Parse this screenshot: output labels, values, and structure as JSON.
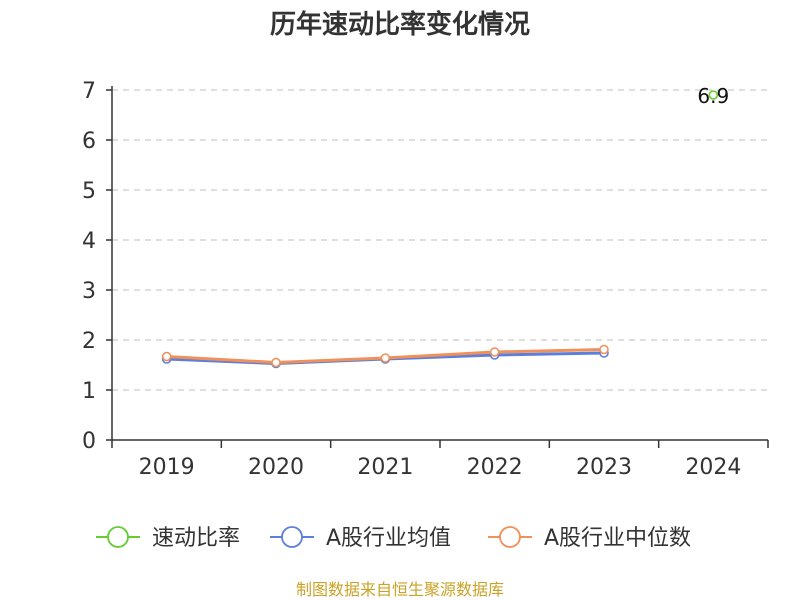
{
  "chart_data": {
    "type": "line",
    "title": "历年速动比率变化情况",
    "categories": [
      "2019",
      "2020",
      "2021",
      "2022",
      "2023",
      "2024"
    ],
    "ylim": [
      0,
      7
    ],
    "yticks": [
      "0",
      "1",
      "2",
      "3",
      "4",
      "5",
      "6",
      "7"
    ],
    "grid": true,
    "legend_position": "bottom",
    "series": [
      {
        "name": "速动比率",
        "color": "#66cc33",
        "values": [
          null,
          null,
          null,
          null,
          null,
          6.9
        ],
        "labels": [
          null,
          null,
          null,
          null,
          null,
          "6.9"
        ]
      },
      {
        "name": "A股行业均值",
        "color": "#5b7fdb",
        "values": [
          1.62,
          1.53,
          1.62,
          1.7,
          1.74,
          null
        ]
      },
      {
        "name": "A股行业中位数",
        "color": "#f0905a",
        "values": [
          1.67,
          1.55,
          1.64,
          1.76,
          1.81,
          null
        ]
      }
    ],
    "source": "制图数据来自恒生聚源数据库"
  }
}
